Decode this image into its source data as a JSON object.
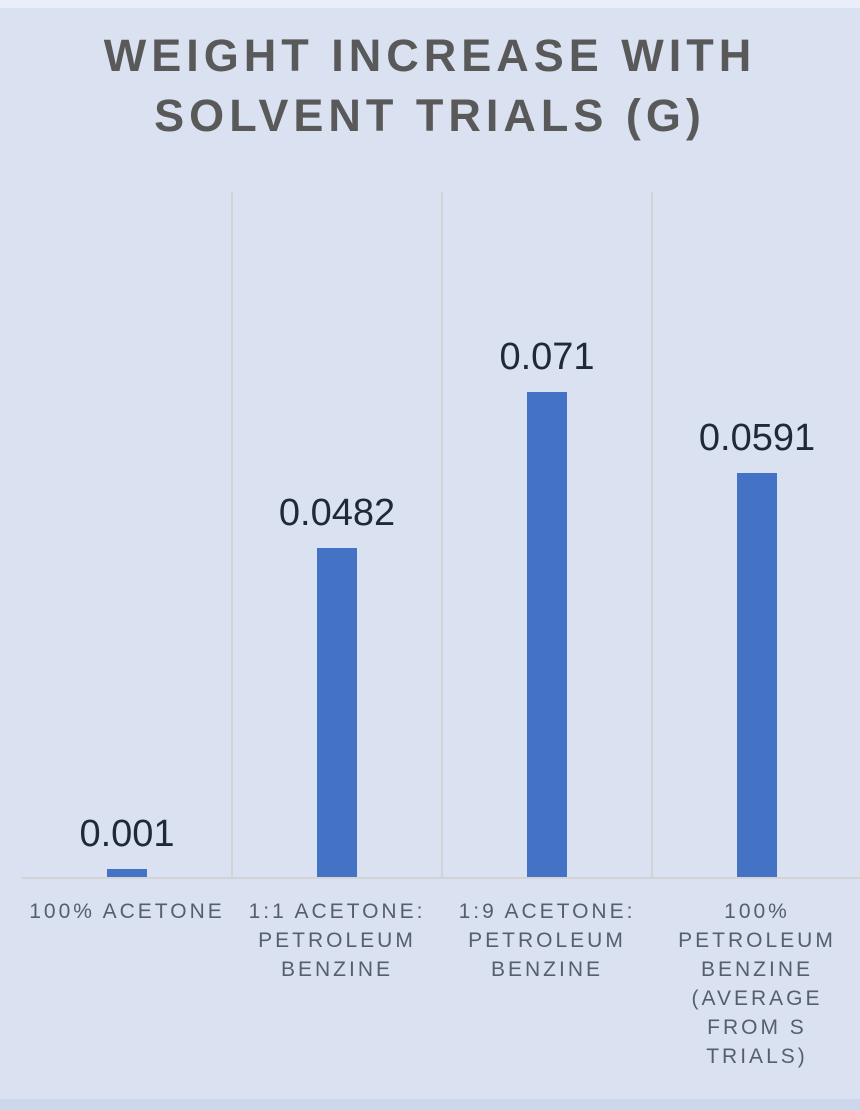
{
  "page": {
    "background_color": "#dae2f2",
    "top_strip_color": "#e9eef8",
    "bottom_strip_color": "#ccd7ec"
  },
  "chart_data": {
    "type": "bar",
    "title": "WEIGHT INCREASE WITH SOLVENT TRIALS (G)",
    "title_lines": [
      "WEIGHT INCREASE WITH",
      "SOLVENT TRIALS (G)"
    ],
    "categories": [
      "100% ACETONE",
      "1:1 ACETONE: PETROLEUM BENZINE",
      "1:9 ACETONE: PETROLEUM BENZINE",
      "100% PETROLEUM BENZINE (AVERAGE FROM S TRIALS)"
    ],
    "category_lines": [
      [
        "100% ACETONE"
      ],
      [
        "1:1 ACETONE:",
        "PETROLEUM",
        "BENZINE"
      ],
      [
        "1:9 ACETONE:",
        "PETROLEUM",
        "BENZINE"
      ],
      [
        "100%",
        "PETROLEUM",
        "BENZINE",
        "(AVERAGE",
        "FROM S",
        "TRIALS)"
      ]
    ],
    "values": [
      0.001,
      0.0482,
      0.071,
      0.0591
    ],
    "data_labels": [
      "0.001",
      "0.0482",
      "0.071",
      "0.0591"
    ],
    "xlabel": "",
    "ylabel": "",
    "unit": "g",
    "ylim": [
      0,
      0.08
    ],
    "grid": "vertical category separators and baseline only, no value axis shown",
    "legend": "none",
    "axes_hidden": true,
    "colors": {
      "bar_fill": "#4472c4",
      "title_text": "#595959",
      "data_label_text": "#1f2937",
      "category_label_text": "#565f6d",
      "gridline": "#d2d3d6"
    }
  }
}
